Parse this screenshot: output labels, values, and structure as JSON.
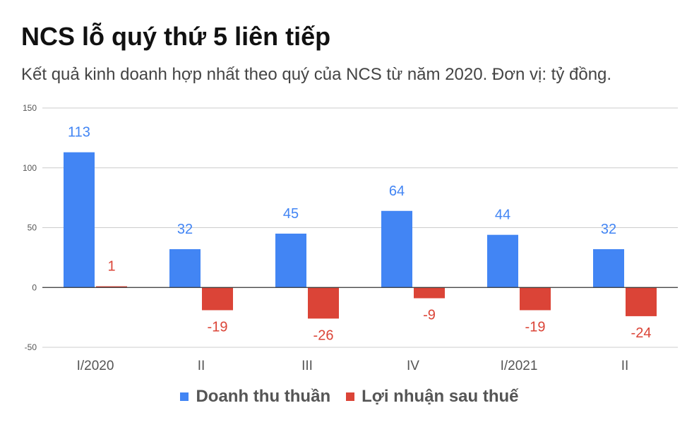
{
  "title": "NCS lỗ quý thứ 5 liên tiếp",
  "subtitle": "Kết quả kinh doanh hợp nhất theo quý của NCS từ năm 2020. Đơn vị: tỷ đồng.",
  "colors": {
    "revenue": "#4285f4",
    "profit": "#db4437",
    "grid": "#cccccc",
    "axis": "#333333"
  },
  "chart_data": {
    "type": "bar",
    "title": "NCS lỗ quý thứ 5 liên tiếp",
    "subtitle": "Kết quả kinh doanh hợp nhất theo quý của NCS từ năm 2020. Đơn vị: tỷ đồng.",
    "categories": [
      "I/2020",
      "II",
      "III",
      "IV",
      "I/2021",
      "II"
    ],
    "series": [
      {
        "name": "Doanh thu thuần",
        "values": [
          113,
          32,
          45,
          64,
          44,
          32
        ],
        "color": "#4285f4"
      },
      {
        "name": "Lợi nhuận sau thuế",
        "values": [
          1,
          -19,
          -26,
          -9,
          -19,
          -24
        ],
        "color": "#db4437"
      }
    ],
    "ylim": [
      -50,
      150
    ],
    "yticks": [
      -50,
      0,
      50,
      100,
      150
    ],
    "grid": true,
    "legend": "bottom",
    "xlabel": "",
    "ylabel": ""
  }
}
